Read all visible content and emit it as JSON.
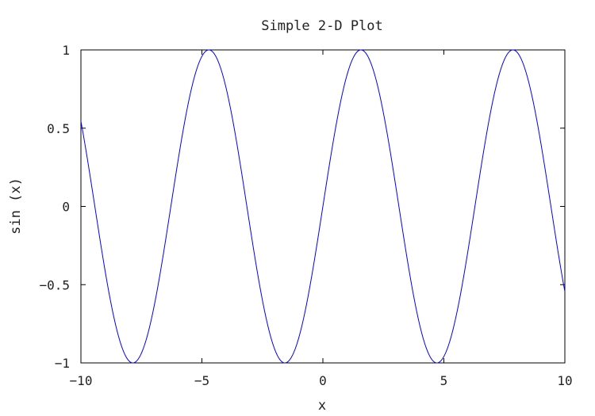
{
  "chart_data": {
    "type": "line",
    "title": "Simple 2-D Plot",
    "xlabel": "x",
    "ylabel": "sin (x)",
    "xlim": [
      -10,
      10
    ],
    "ylim": [
      -1,
      1
    ],
    "x_ticks": [
      -10,
      -5,
      0,
      5,
      10
    ],
    "x_tick_labels": [
      "−10",
      "−5",
      "0",
      "5",
      "10"
    ],
    "y_ticks": [
      -1,
      -0.5,
      0,
      0.5,
      1
    ],
    "y_tick_labels": [
      "−1",
      "−0.5",
      "0",
      "0.5",
      "1"
    ],
    "grid": false,
    "series": [
      {
        "function": "sin(x)",
        "color": "#0000ff",
        "x": [
          -10,
          -9.5,
          -9,
          -8.5,
          -8,
          -7.5,
          -7,
          -6.5,
          -6,
          -5.5,
          -5,
          -4.5,
          -4,
          -3.5,
          -3,
          -2.5,
          -2,
          -1.5,
          -1,
          -0.5,
          0,
          0.5,
          1,
          1.5,
          2,
          2.5,
          3,
          3.5,
          4,
          4.5,
          5,
          5.5,
          6,
          6.5,
          7,
          7.5,
          8,
          8.5,
          9,
          9.5,
          10
        ],
        "y": [
          0.544,
          0.075,
          -0.412,
          -0.798,
          -0.989,
          -0.938,
          -0.657,
          -0.215,
          0.279,
          0.706,
          0.959,
          0.978,
          0.757,
          0.351,
          -0.141,
          -0.598,
          -0.909,
          -0.997,
          -0.841,
          -0.479,
          0,
          0.479,
          0.841,
          0.997,
          0.909,
          0.598,
          0.141,
          -0.351,
          -0.757,
          -0.978,
          -0.959,
          -0.706,
          -0.279,
          0.215,
          0.657,
          0.938,
          0.989,
          0.798,
          0.412,
          -0.075,
          -0.544
        ]
      }
    ]
  }
}
